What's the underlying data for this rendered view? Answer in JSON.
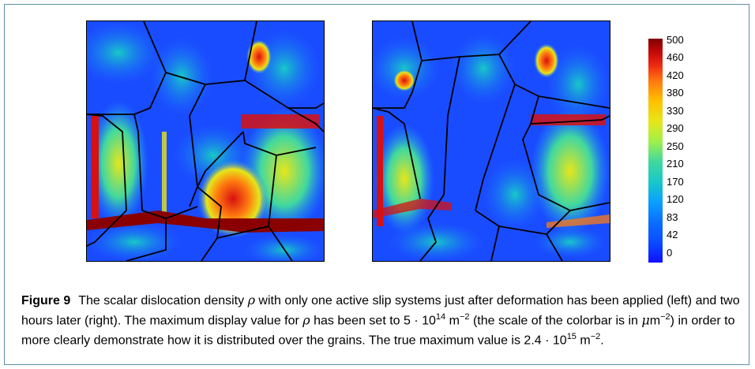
{
  "figure": {
    "label": "Figure 9",
    "caption_parts": [
      "The scalar dislocation density ",
      "ρ",
      " with only one active slip systems just after deformation has been applied (left) and two hours later (right). The maximum display value for ",
      "ρ",
      " has been set to ",
      "5 · 10",
      "14",
      " m",
      "−2",
      " (the scale of the colorbar is in ",
      "μ",
      "m",
      "−2",
      ") in order to more clearly demonstrate how it is distributed over the grains. The true maximum value is ",
      "2.4 · 10",
      "15",
      " m",
      "−2",
      "."
    ]
  },
  "colorbar": {
    "ticks": [
      "500",
      "460",
      "420",
      "380",
      "330",
      "290",
      "250",
      "210",
      "170",
      "120",
      "83",
      "42",
      "0"
    ],
    "colors": {
      "min": "#1010ff",
      "max": "#800000"
    }
  },
  "panels": [
    {
      "id": "left"
    },
    {
      "id": "right"
    }
  ]
}
